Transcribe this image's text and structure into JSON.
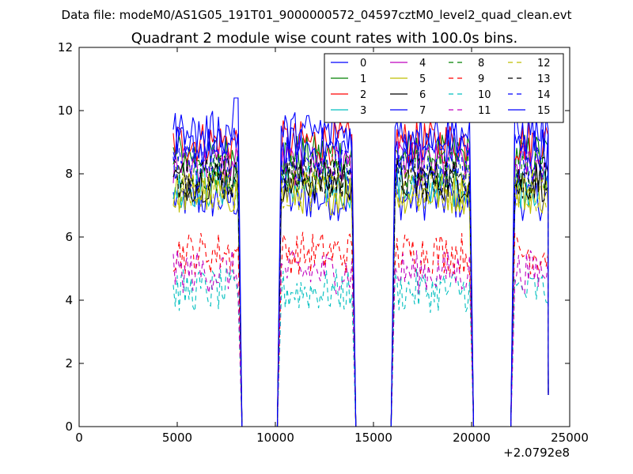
{
  "header": {
    "data_file_line": "Data file: modeM0/AS1G05_191T01_9000000572_04597cztM0_level2_quad_clean.evt"
  },
  "chart_data": {
    "type": "line",
    "title": "Quadrant 2 module wise count rates with 100.0s bins.",
    "xlabel": "",
    "ylabel": "",
    "x_offset_label": "+2.0792e8",
    "xlim": [
      0,
      25000
    ],
    "ylim": [
      0,
      12
    ],
    "x_ticks": [
      0,
      5000,
      10000,
      15000,
      20000,
      25000
    ],
    "y_ticks": [
      0,
      2,
      4,
      6,
      8,
      10,
      12
    ],
    "grid": false,
    "legend": {
      "placement": "top-right",
      "columns": 4
    },
    "segments": [
      {
        "start": 4800,
        "end": 8100
      },
      {
        "start": 10300,
        "end": 13900
      },
      {
        "start": 16100,
        "end": 19900
      },
      {
        "start": 22200,
        "end": 23900
      }
    ],
    "gaps": [
      {
        "start": 8300,
        "end": 10200
      },
      {
        "start": 14200,
        "end": 16000
      },
      {
        "start": 20000,
        "end": 22100
      }
    ],
    "bin_seconds": 100,
    "series": [
      {
        "name": "0",
        "color": "#0000ff",
        "dash": "solid",
        "level": 7.2
      },
      {
        "name": "1",
        "color": "#008000",
        "dash": "solid",
        "level": 8.6
      },
      {
        "name": "2",
        "color": "#ff0000",
        "dash": "solid",
        "level": 9.0
      },
      {
        "name": "3",
        "color": "#00bfbf",
        "dash": "solid",
        "level": 7.6
      },
      {
        "name": "4",
        "color": "#bf00bf",
        "dash": "solid",
        "level": 8.3
      },
      {
        "name": "5",
        "color": "#bfbf00",
        "dash": "solid",
        "level": 7.4
      },
      {
        "name": "6",
        "color": "#000000",
        "dash": "solid",
        "level": 7.8
      },
      {
        "name": "7",
        "color": "#0000ff",
        "dash": "solid",
        "level": 8.8
      },
      {
        "name": "8",
        "color": "#008000",
        "dash": "dashed",
        "level": 8.1
      },
      {
        "name": "9",
        "color": "#ff0000",
        "dash": "dashed",
        "level": 5.5
      },
      {
        "name": "10",
        "color": "#00bfbf",
        "dash": "dashed",
        "level": 4.3
      },
      {
        "name": "11",
        "color": "#bf00bf",
        "dash": "dashed",
        "level": 4.9
      },
      {
        "name": "12",
        "color": "#bfbf00",
        "dash": "dashed",
        "level": 7.5
      },
      {
        "name": "13",
        "color": "#000000",
        "dash": "dashed",
        "level": 7.9
      },
      {
        "name": "14",
        "color": "#0000ff",
        "dash": "dashed",
        "level": 8.2
      },
      {
        "name": "15",
        "color": "#0000ff",
        "dash": "solid",
        "level": 9.3
      }
    ]
  }
}
